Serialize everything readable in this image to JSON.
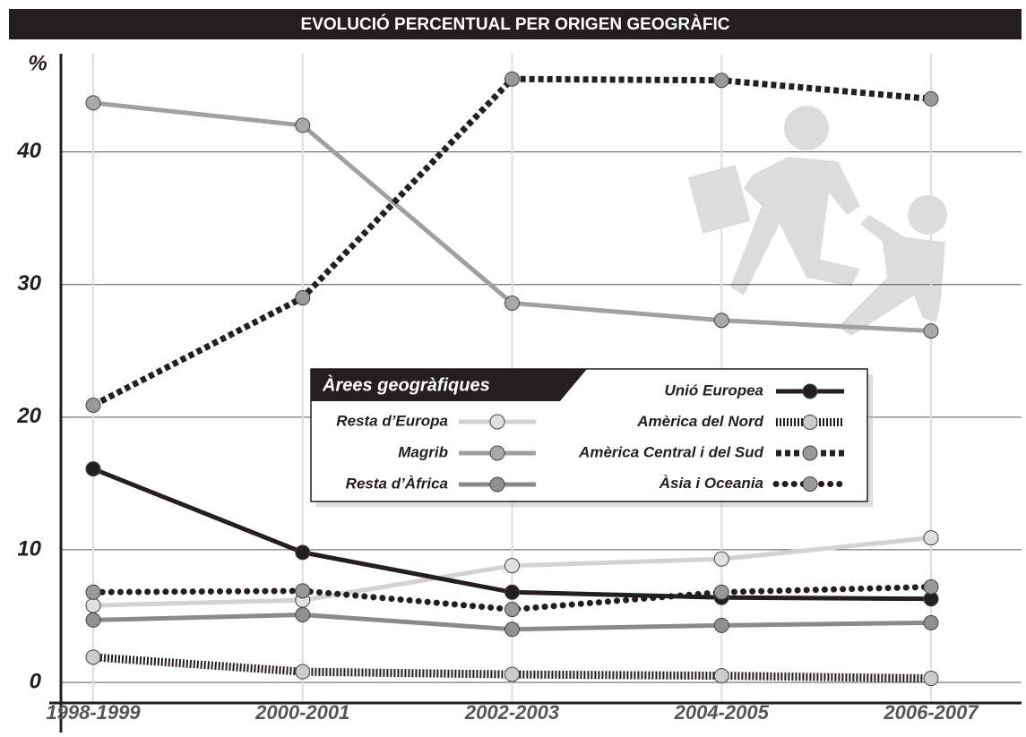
{
  "chart_data": {
    "type": "line",
    "title": "EVOLUCIÓ PERCENTUAL PER ORIGEN GEOGRÀFIC",
    "y_label": "%",
    "categories": [
      "1998-1999",
      "2000-2001",
      "2002-2003",
      "2004-2005",
      "2006-2007"
    ],
    "ylim": [
      0,
      47
    ],
    "yticks": [
      0,
      10,
      20,
      30,
      40
    ],
    "grid": true,
    "legend_title": "Àrees geogràfiques",
    "series": [
      {
        "name": "Resta d’Europa",
        "color": "#d2d2d2",
        "marker_color": "#e0e0e0",
        "style": "solid",
        "values": [
          5.8,
          6.2,
          8.8,
          9.3,
          10.9
        ]
      },
      {
        "name": "Magrib",
        "color": "#a0a0a0",
        "marker_color": "#a8a8a8",
        "style": "solid",
        "values": [
          43.7,
          42.0,
          28.6,
          27.3,
          26.5
        ]
      },
      {
        "name": "Resta d’Àfrica",
        "color": "#8a8a8a",
        "marker_color": "#909090",
        "style": "solid",
        "values": [
          4.7,
          5.1,
          4.0,
          4.3,
          4.5
        ]
      },
      {
        "name": "Unió Europea",
        "color": "#231f20",
        "marker_color": "#231f20",
        "style": "solid",
        "values": [
          16.1,
          9.8,
          6.8,
          6.4,
          6.3
        ]
      },
      {
        "name": "Amèrica del Nord",
        "color": "#231f20",
        "marker_color": "#cccccc",
        "style": "striped",
        "values": [
          1.9,
          0.8,
          0.6,
          0.5,
          0.3
        ]
      },
      {
        "name": "Amèrica Central i del Sud",
        "color": "#231f20",
        "marker_color": "#999999",
        "style": "dashed",
        "values": [
          20.9,
          29.0,
          45.5,
          45.4,
          44.0
        ]
      },
      {
        "name": "Àsia i Oceania",
        "color": "#231f20",
        "marker_color": "#999999",
        "style": "dotted",
        "values": [
          6.8,
          6.9,
          5.5,
          6.8,
          7.2
        ]
      }
    ]
  }
}
